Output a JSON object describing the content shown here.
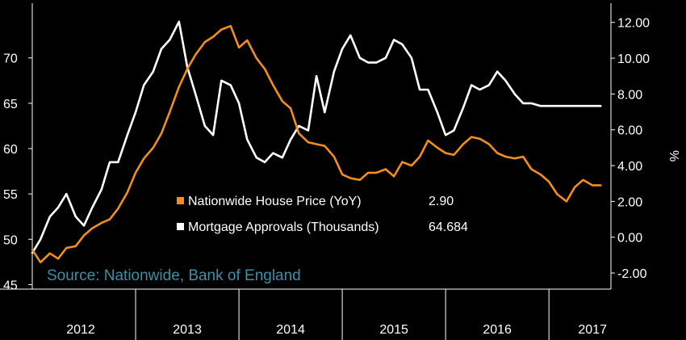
{
  "colors": {
    "background": "#000000",
    "house_price": "#f28e1c",
    "approvals": "#ffffff",
    "source": "#3e8ea6",
    "axis": "#ffffff"
  },
  "legend": {
    "items": [
      {
        "label": "Nationwide House Price (YoY)",
        "value": "2.90",
        "color": "#f28e1c"
      },
      {
        "label": "Mortgage Approvals (Thousands)",
        "value": "64.684",
        "color": "#ffffff"
      }
    ]
  },
  "source": "Source: Nationwide, Bank of England",
  "chart_data": {
    "type": "line",
    "x_unit": "year",
    "x_range": [
      2012.0,
      2017.6
    ],
    "year_labels": [
      "2012",
      "2013",
      "2014",
      "2015",
      "2016",
      "2017"
    ],
    "left_axis": {
      "ylim": [
        44.5,
        75.5
      ],
      "ticks": [
        "45",
        "50",
        "55",
        "60",
        "65",
        "70"
      ],
      "tick_values": [
        45,
        50,
        55,
        60,
        65,
        70
      ]
    },
    "right_axis": {
      "ylabel": "%",
      "ylim": [
        -2.9,
        12.8
      ],
      "ticks": [
        "-2.00",
        "0.00",
        "2.00",
        "4.00",
        "6.00",
        "8.00",
        "10.00",
        "12.00"
      ],
      "tick_values": [
        -2,
        0,
        2,
        4,
        6,
        8,
        10,
        12
      ]
    },
    "grid": false,
    "series": [
      {
        "name": "Mortgage Approvals (Thousands)",
        "axis": "left",
        "color": "#ffffff",
        "x": [
          2012.0,
          2012.08,
          2012.17,
          2012.25,
          2012.33,
          2012.42,
          2012.5,
          2012.58,
          2012.67,
          2012.75,
          2012.83,
          2012.92,
          2013.0,
          2013.08,
          2013.17,
          2013.25,
          2013.33,
          2013.42,
          2013.5,
          2013.58,
          2013.67,
          2013.75,
          2013.83,
          2013.92,
          2014.0,
          2014.08,
          2014.17,
          2014.25,
          2014.33,
          2014.42,
          2014.5,
          2014.58,
          2014.67,
          2014.75,
          2014.83,
          2014.92,
          2015.0,
          2015.08,
          2015.17,
          2015.25,
          2015.33,
          2015.42,
          2015.5,
          2015.58,
          2015.67,
          2015.75,
          2015.83,
          2015.92,
          2016.0,
          2016.08,
          2016.17,
          2016.25,
          2016.33,
          2016.42,
          2016.5,
          2016.58,
          2016.67,
          2016.75,
          2016.83,
          2016.92,
          2017.0,
          2017.08,
          2017.17,
          2017.25,
          2017.33,
          2017.42,
          2017.5
        ],
        "y": [
          48.5,
          50.0,
          52.5,
          53.5,
          55.0,
          52.5,
          51.5,
          53.5,
          55.5,
          58.5,
          58.5,
          61.5,
          64.0,
          67.0,
          68.5,
          71.0,
          72.0,
          74.0,
          69.0,
          66.0,
          62.5,
          61.5,
          67.5,
          67.0,
          65.0,
          61.0,
          59.0,
          58.5,
          59.5,
          59.0,
          61.0,
          62.5,
          62.0,
          68.0,
          64.0,
          68.5,
          71.0,
          72.5,
          70.0,
          69.5,
          69.5,
          70.0,
          72.0,
          71.5,
          70.0,
          66.5,
          66.5,
          64.0,
          61.5,
          62.0,
          64.5,
          67.0,
          66.5,
          67.0,
          68.5,
          67.5,
          66.0,
          65.0,
          65.0,
          64.7,
          64.7,
          64.7,
          64.7,
          64.7,
          64.7,
          64.7,
          64.7
        ]
      },
      {
        "name": "Nationwide House Price (YoY)",
        "axis": "right",
        "color": "#f28e1c",
        "x": [
          2012.0,
          2012.08,
          2012.17,
          2012.25,
          2012.33,
          2012.42,
          2012.5,
          2012.58,
          2012.67,
          2012.75,
          2012.83,
          2012.92,
          2013.0,
          2013.08,
          2013.17,
          2013.25,
          2013.33,
          2013.42,
          2013.5,
          2013.58,
          2013.67,
          2013.75,
          2013.83,
          2013.92,
          2014.0,
          2014.08,
          2014.17,
          2014.25,
          2014.33,
          2014.42,
          2014.5,
          2014.58,
          2014.67,
          2014.75,
          2014.83,
          2014.92,
          2015.0,
          2015.08,
          2015.17,
          2015.25,
          2015.33,
          2015.42,
          2015.5,
          2015.58,
          2015.67,
          2015.75,
          2015.83,
          2015.92,
          2016.0,
          2016.08,
          2016.17,
          2016.25,
          2016.33,
          2016.42,
          2016.5,
          2016.58,
          2016.67,
          2016.75,
          2016.83,
          2016.92,
          2017.0,
          2017.08,
          2017.17,
          2017.25,
          2017.33,
          2017.42,
          2017.5
        ],
        "y": [
          -0.7,
          -1.4,
          -0.9,
          -1.2,
          -0.6,
          -0.5,
          0.1,
          0.5,
          0.8,
          1.0,
          1.6,
          2.5,
          3.6,
          4.4,
          5.0,
          5.8,
          7.0,
          8.4,
          9.4,
          10.2,
          10.9,
          11.2,
          11.6,
          11.8,
          10.6,
          11.0,
          10.0,
          9.4,
          8.5,
          7.6,
          7.2,
          5.8,
          5.3,
          5.2,
          5.1,
          4.5,
          3.5,
          3.3,
          3.2,
          3.6,
          3.6,
          3.8,
          3.4,
          4.2,
          4.0,
          4.5,
          5.4,
          5.0,
          4.7,
          4.6,
          5.2,
          5.6,
          5.5,
          5.2,
          4.7,
          4.5,
          4.4,
          4.5,
          3.8,
          3.5,
          3.1,
          2.4,
          2.0,
          2.8,
          3.2,
          2.9,
          2.9
        ]
      }
    ]
  }
}
